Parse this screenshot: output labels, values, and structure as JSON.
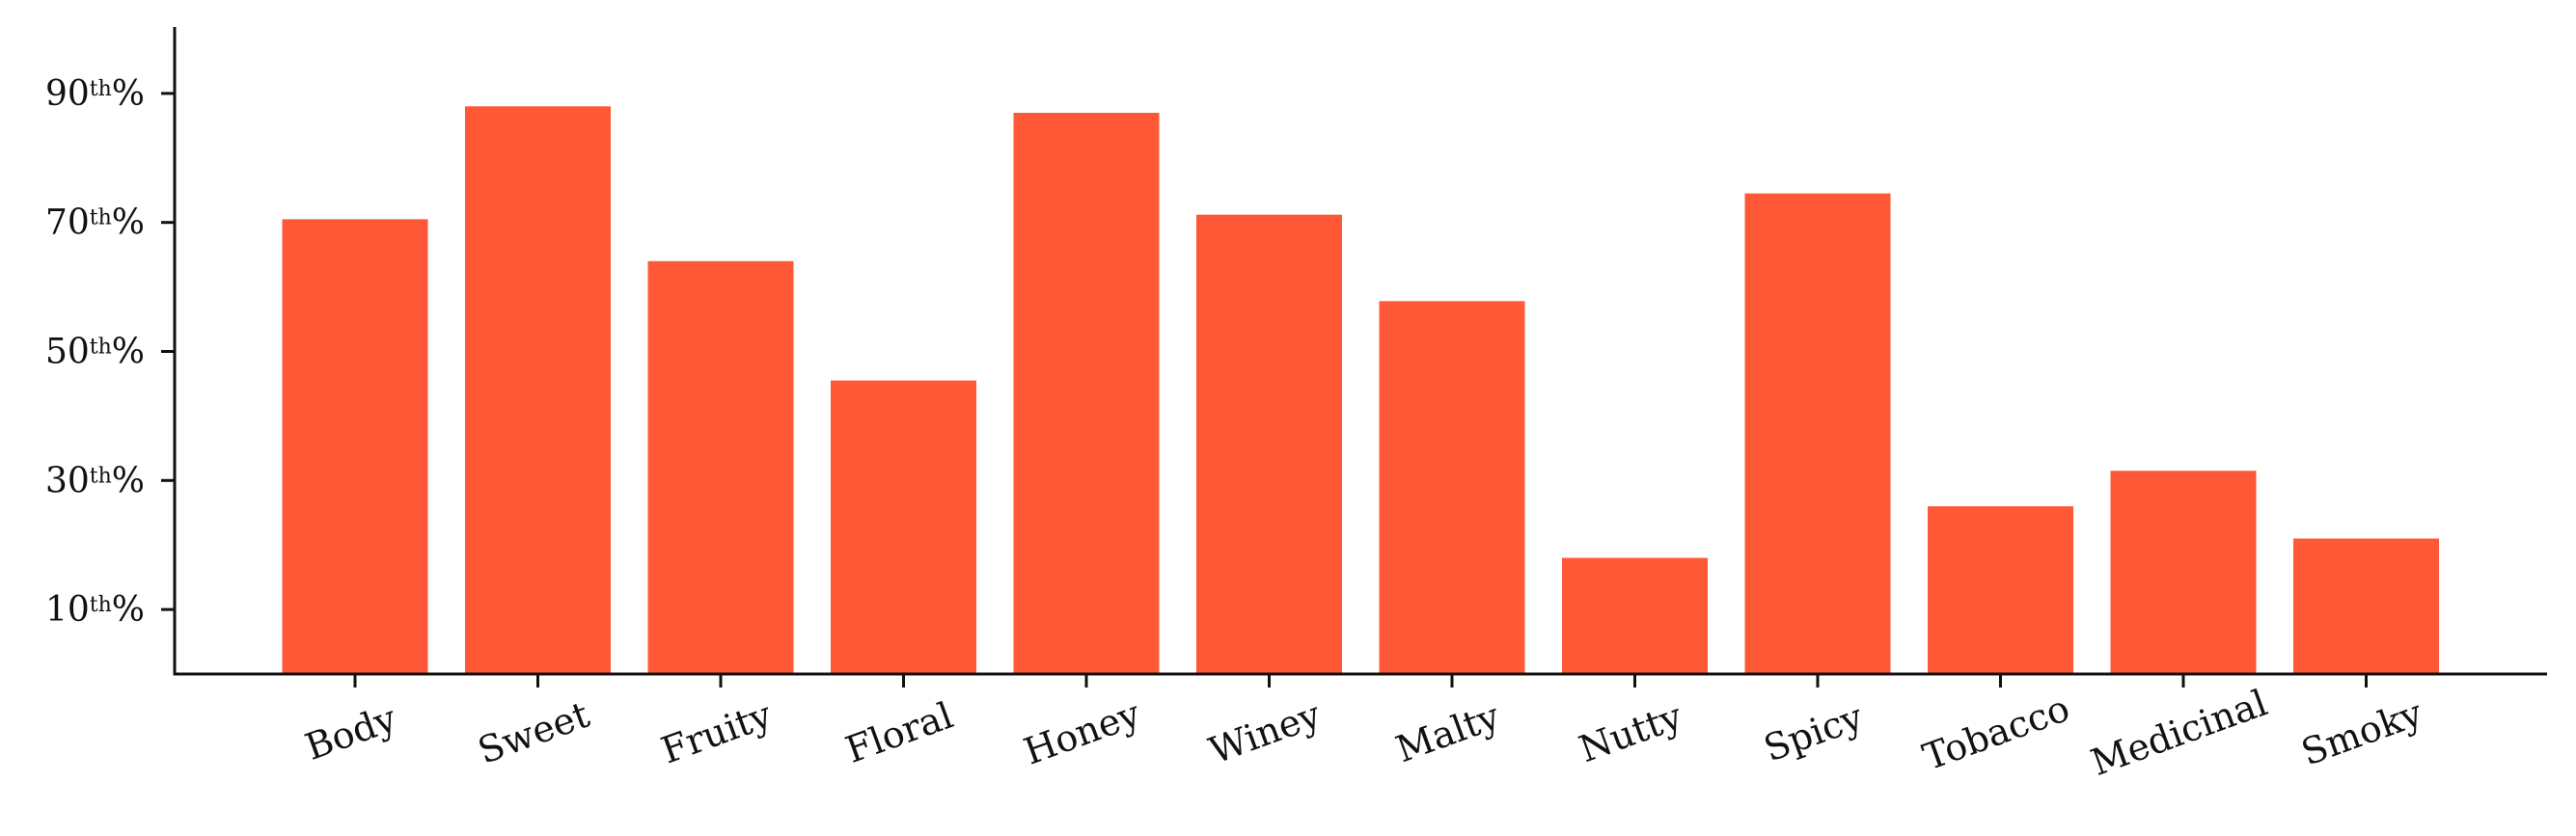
{
  "chart_data": {
    "type": "bar",
    "categories": [
      "Body",
      "Sweet",
      "Fruity",
      "Floral",
      "Honey",
      "Winey",
      "Malty",
      "Nutty",
      "Spicy",
      "Tobacco",
      "Medicinal",
      "Smoky"
    ],
    "values": [
      70.5,
      88,
      64,
      45.5,
      87,
      71.2,
      57.8,
      18,
      74.5,
      26,
      31.5,
      21
    ],
    "ylim": [
      0,
      100
    ],
    "yticks": [
      {
        "value": 10,
        "num": "10",
        "sup": "th",
        "suffix": "%"
      },
      {
        "value": 30,
        "num": "30",
        "sup": "th",
        "suffix": "%"
      },
      {
        "value": 50,
        "num": "50",
        "sup": "th",
        "suffix": "%"
      },
      {
        "value": 70,
        "num": "70",
        "sup": "th",
        "suffix": "%"
      },
      {
        "value": 90,
        "num": "90",
        "sup": "th",
        "suffix": "%"
      }
    ],
    "title": "",
    "xlabel": "",
    "ylabel": "",
    "bar_color": "#FF5837",
    "grid": false,
    "label_rotation": -20
  }
}
